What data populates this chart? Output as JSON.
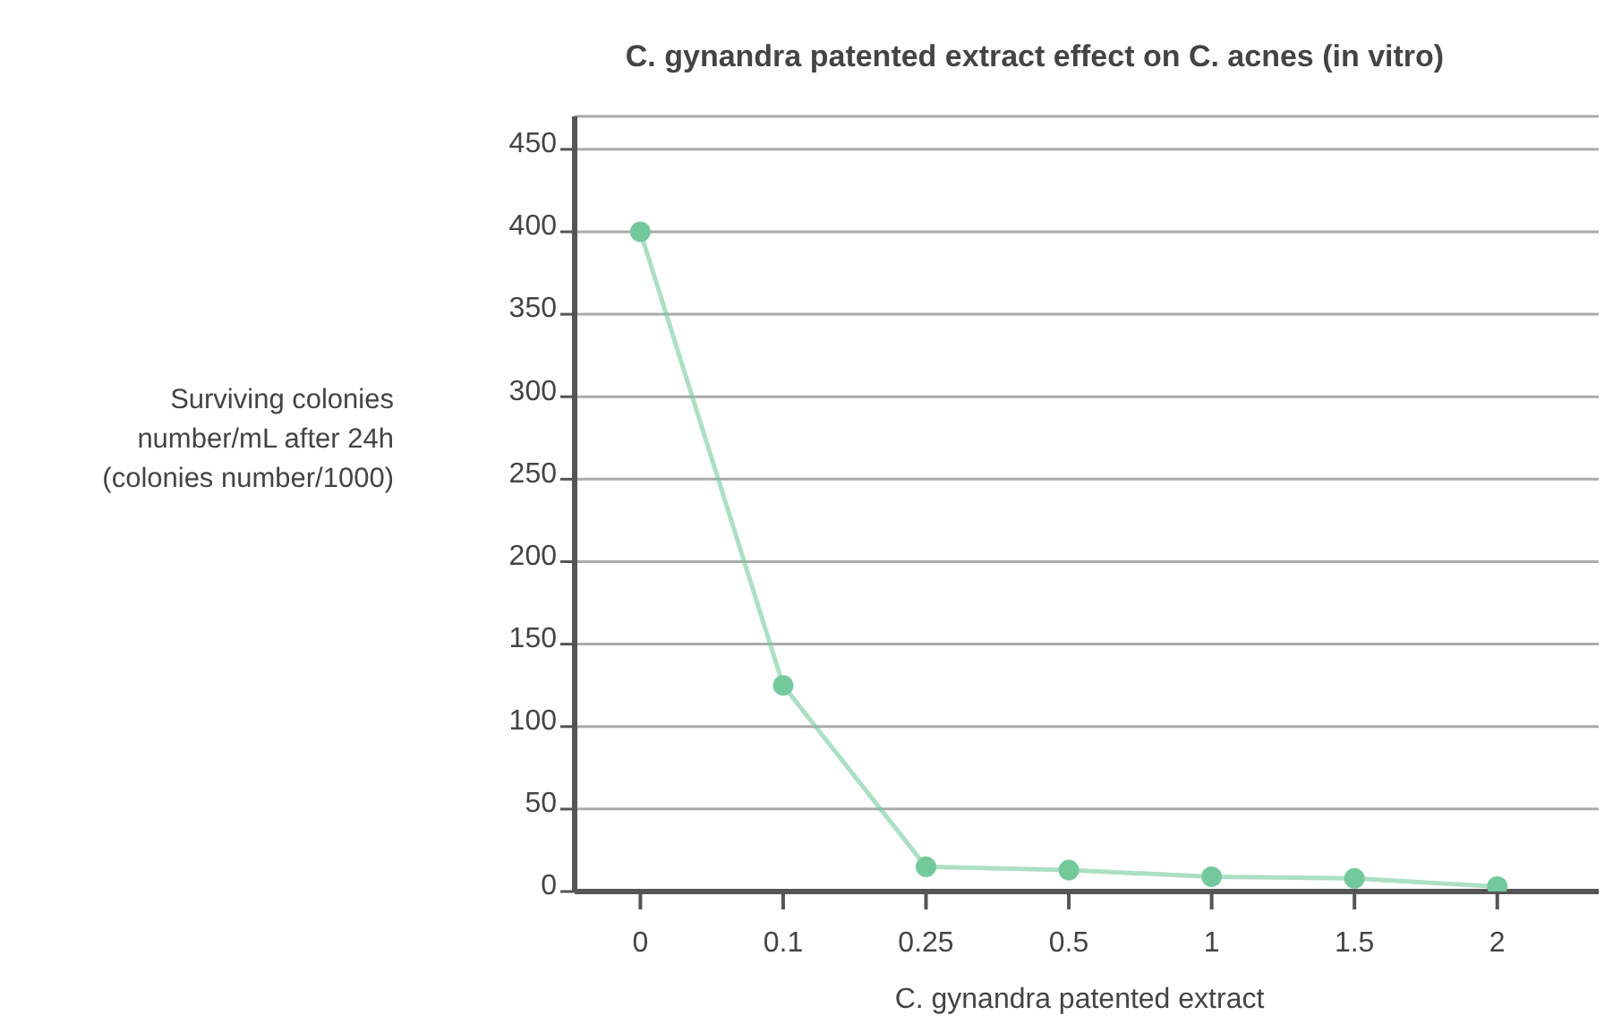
{
  "chart_data": {
    "type": "line",
    "title": "C. gynandra patented extract effect on C. acnes (in vitro)",
    "xlabel": "C. gynandra patented extract",
    "ylabel": "Surviving colonies number/mL after 24h (colonies number/1000)",
    "categories": [
      "0",
      "0.1",
      "0.25",
      "0.5",
      "1",
      "1.5",
      "2"
    ],
    "series": [
      {
        "color": "#74c99c",
        "values": [
          400,
          125,
          15,
          13,
          9,
          8,
          3
        ]
      }
    ],
    "ylim": [
      0,
      470
    ],
    "yticks": [
      0,
      50,
      100,
      150,
      200,
      250,
      300,
      350,
      400,
      450
    ],
    "grid": "y",
    "marker": "circle",
    "line_style": "solid"
  }
}
